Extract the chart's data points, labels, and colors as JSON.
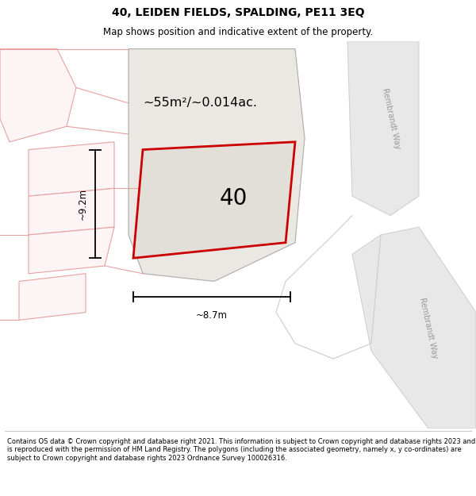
{
  "title": "40, LEIDEN FIELDS, SPALDING, PE11 3EQ",
  "subtitle": "Map shows position and indicative extent of the property.",
  "footer": "Contains OS data © Crown copyright and database right 2021. This information is subject to Crown copyright and database rights 2023 and is reproduced with the permission of HM Land Registry. The polygons (including the associated geometry, namely x, y co-ordinates) are subject to Crown copyright and database rights 2023 Ordnance Survey 100026316.",
  "map_bg": "#f7f6f4",
  "area_label": "~55m²/~0.014ac.",
  "number_label": "40",
  "width_label": "~8.7m",
  "height_label": "~9.2m",
  "road_label_1": "Rembrandt Way",
  "road_label_2": "Rembrandt Way",
  "road_fill": "#e8e8e8",
  "road_edge": "#cccccc",
  "plot_bg_fill": "#ebe8e3",
  "plot_bg_edge": "#aaaaaa",
  "plot_fill": "#e2dfd9",
  "plot_stroke": "#cc0000",
  "neighbour_stroke": "#e8a0a0",
  "neighbour_fill": "#fdf5f5",
  "figsize": [
    6.0,
    6.25
  ],
  "dpi": 100,
  "title_fontsize": 10,
  "subtitle_fontsize": 8.5,
  "footer_fontsize": 6.0
}
